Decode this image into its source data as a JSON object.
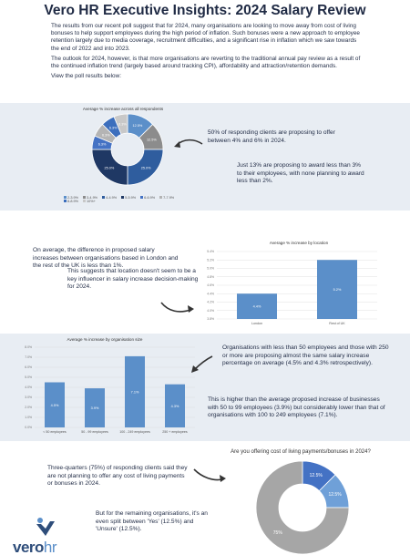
{
  "title": "Vero HR Executive Insights: 2024 Salary Review",
  "intro": [
    "The results from our recent poll suggest that for 2024, many organisations are looking to move away from cost of living bonuses to help support employees during the high period of inflation. Such bonuses were a new approach to employee retention largely due to media coverage, recruitment difficulties, and a significant rise in inflation which we saw towards the end of 2022 and into 2023.",
    "The outlook for 2024, however, is that more organisations are reverting to the traditional annual pay review as a result of the continued inflation trend (largely based around tracking CPI), affordability and attraction/retention demands."
  ],
  "view_results": "View the poll results below:",
  "section1": {
    "text1": "50% of responding clients are proposing to offer between 4% and 6% in 2024.",
    "text2": "Just 13% are proposing to award less than 3% to their employees, with none planning to award less than 2%."
  },
  "section2": {
    "text1": "On average, the difference in proposed salary increases between organisations based in London and the rest of the UK is less than 1%.",
    "text2": "This suggests that location doesn't seem to be a key influencer in salary increase decision-making for 2024."
  },
  "section3": {
    "text1": "Organisations with less than 50 employees and those with 250 or more are proposing almost the same salary increase percentage on average (4.5% and 4.3% retrospectively).",
    "text2": "This is higher than the average proposed increase of businesses with 50 to 99 employees (3.9%) but considerably lower than that of organisations with 100 to 249 employees (7.1%)."
  },
  "section4": {
    "text1": "Three-quarters (75%) of responding clients said they are not planning to offer any cost of living payments or bonuses in 2024.",
    "text2": "But for the remaining organisations, it's an even split between 'Yes' (12.5%) and 'Unsure' (12.5%)."
  },
  "logo": {
    "word1": "vero",
    "word2": "hr"
  },
  "colors": {
    "accent": "#5b8fc9",
    "navy": "#1f3864",
    "band": "#e8edf3"
  },
  "chart_data": [
    {
      "type": "pie",
      "title": "Average % increase across all respondents",
      "categories": [
        "2-3.9%",
        "3-4.9%",
        "4-4.9%",
        "5-5.9%",
        "6-6.9%",
        "7-7.9%",
        "8-8.9%",
        "10%+"
      ],
      "values": [
        12.5,
        12.5,
        25,
        25,
        6.25,
        6.25,
        6.25,
        6.25
      ],
      "labels": [
        "12.5%",
        "12.5%",
        "25.0%",
        "25.0%",
        "6.3%",
        "6.3%",
        "6.3%",
        "6.3%"
      ],
      "colors": [
        "#5b8fc9",
        "#8c8c8c",
        "#2f5d9e",
        "#1f3864",
        "#4472c4",
        "#b4b4b4",
        "#3b6ebd",
        "#c8c8c8"
      ]
    },
    {
      "type": "bar",
      "title": "Average % increase by location",
      "categories": [
        "London",
        "Rest of UK"
      ],
      "values": [
        4.4,
        5.2
      ],
      "labels": [
        "4.4%",
        "5.2%"
      ],
      "ylim": [
        3.8,
        5.4
      ],
      "yticks": [
        "3.8%",
        "4.0%",
        "4.2%",
        "4.4%",
        "4.6%",
        "4.8%",
        "5.0%",
        "5.2%",
        "5.4%"
      ]
    },
    {
      "type": "bar",
      "title": "Average % increase by organisation size",
      "categories": [
        "< 50 employees",
        "50 - 99 employees",
        "100 - 249 employees",
        "250 + employees"
      ],
      "values": [
        4.5,
        3.9,
        7.1,
        4.3
      ],
      "labels": [
        "4.5%",
        "3.9%",
        "7.1%",
        "4.3%"
      ],
      "ylim": [
        0,
        8
      ],
      "yticks": [
        "0.0%",
        "1.0%",
        "2.0%",
        "3.0%",
        "4.0%",
        "5.0%",
        "6.0%",
        "7.0%",
        "8.0%"
      ]
    },
    {
      "type": "pie",
      "title": "Are you offering cost of living payments/bonuses in 2024?",
      "categories": [
        "Yes",
        "Unsure",
        "No"
      ],
      "values": [
        12.5,
        12.5,
        75
      ],
      "labels": [
        "12.5%",
        "12.5%",
        "75%"
      ],
      "colors": [
        "#4472c4",
        "#6fa0d8",
        "#a6a6a6"
      ]
    }
  ]
}
